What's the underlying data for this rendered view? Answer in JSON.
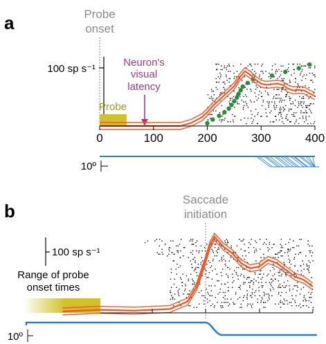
{
  "colors": {
    "psth_line": "#ef5a28",
    "eye_trace": "#2a7fc9",
    "probe_bar": "#cfc126",
    "saccade_dot": "#2c8a3c",
    "latency_arrow": "#a8397f",
    "annotation_gray": "#8a8a8a"
  },
  "panel_a": {
    "letter": "a",
    "probe_onset_label": [
      "Probe",
      "onset"
    ],
    "latency_label": [
      "Neuron's",
      "visual",
      "latency"
    ],
    "probe_label": "Probe",
    "rate_scale_label": "100 sp s⁻¹",
    "eye_scale_label": "10º"
  },
  "panel_b": {
    "letter": "b",
    "saccade_label": [
      "Saccade",
      "initiation"
    ],
    "rate_scale_label": "100 sp s⁻¹",
    "range_label": [
      "Range of probe",
      "onset times"
    ],
    "eye_scale_label": "10º"
  },
  "chart_data": [
    {
      "type": "line",
      "panel": "a",
      "xlim": [
        0,
        400
      ],
      "xticks": [
        "0",
        "100",
        "200",
        "300",
        "400"
      ],
      "ylabel_scale": "100 sp s⁻¹",
      "probe_interval": [
        0,
        50
      ],
      "visual_latency": 90,
      "series": [
        {
          "x": [
            0,
            50,
            100,
            150,
            170,
            190,
            200,
            210,
            220,
            230,
            240,
            250,
            260,
            270,
            280,
            290,
            300,
            310,
            320,
            330,
            340,
            350,
            360,
            370,
            380,
            390,
            400
          ],
          "values": [
            0,
            0,
            0,
            0,
            5,
            14,
            22,
            32,
            40,
            48,
            56,
            64,
            78,
            88,
            82,
            74,
            68,
            66,
            67,
            68,
            66,
            60,
            57,
            58,
            57,
            52,
            48
          ]
        }
      ],
      "saccade_times": [
        200,
        210,
        222,
        232,
        240,
        245,
        250,
        255,
        258,
        262,
        266,
        275,
        285,
        320,
        345,
        370,
        390
      ]
    },
    {
      "type": "line",
      "panel": "b",
      "ylabel_scale": "100 sp s⁻¹",
      "saccade_initiation": 0,
      "x": [
        -160,
        -120,
        -80,
        -40,
        -20,
        -10,
        0,
        5,
        10,
        15,
        20,
        30,
        40,
        50,
        60,
        70,
        80,
        90,
        100,
        110,
        120
      ],
      "series": [
        {
          "values": [
            0,
            2,
            1,
            3,
            12,
            30,
            62,
            80,
            90,
            84,
            78,
            70,
            58,
            52,
            54,
            62,
            58,
            50,
            42,
            38,
            30
          ]
        }
      ]
    }
  ]
}
